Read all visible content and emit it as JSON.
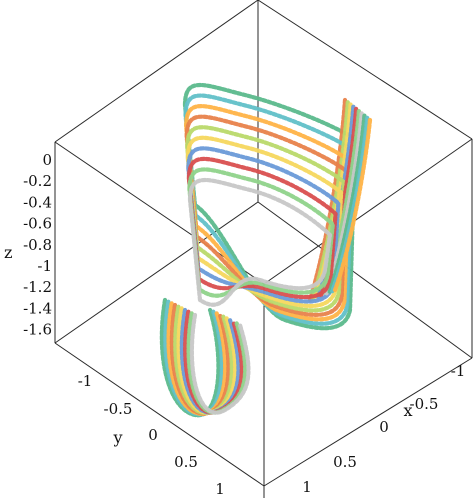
{
  "chart_data": {
    "type": "line",
    "projection": "3d",
    "axes": {
      "x": {
        "label": "x",
        "ticks": [
          "-1",
          "-0.5",
          "0",
          "0.5",
          "1"
        ],
        "range": [
          1,
          -1
        ]
      },
      "y": {
        "label": "y",
        "ticks": [
          "-1",
          "-0.5",
          "0",
          "0.5",
          "1"
        ],
        "range": [
          -1,
          1
        ]
      },
      "z": {
        "label": "z",
        "ticks": [
          "0",
          "-0.2",
          "-0.4",
          "-0.6",
          "-0.8",
          "-1",
          "-1.2",
          "-1.4",
          "-1.6"
        ],
        "range": [
          -1.7,
          0
        ]
      }
    },
    "grid": false,
    "line_style": "dotted",
    "series": [
      {
        "color": "#5bb98c",
        "values": [
          0.0,
          0.0
        ]
      },
      {
        "color": "#61c0c8",
        "values": [
          0.0,
          0.0
        ]
      },
      {
        "color": "#ffb347",
        "values": [
          0.0,
          0.0
        ]
      },
      {
        "color": "#e8824b",
        "values": [
          0.0,
          0.0
        ]
      },
      {
        "color": "#b9d96a",
        "values": [
          0.0,
          0.0
        ]
      },
      {
        "color": "#f5d75e",
        "values": [
          0.0,
          0.0
        ]
      },
      {
        "color": "#6a9ad8",
        "values": [
          0.0,
          0.0
        ]
      },
      {
        "color": "#d94f4f",
        "values": [
          0.0,
          0.0
        ]
      },
      {
        "color": "#8fd38a",
        "values": [
          0.0,
          0.0
        ]
      },
      {
        "color": "#c7c7c7",
        "values": [
          0.0,
          0.0
        ]
      }
    ]
  }
}
